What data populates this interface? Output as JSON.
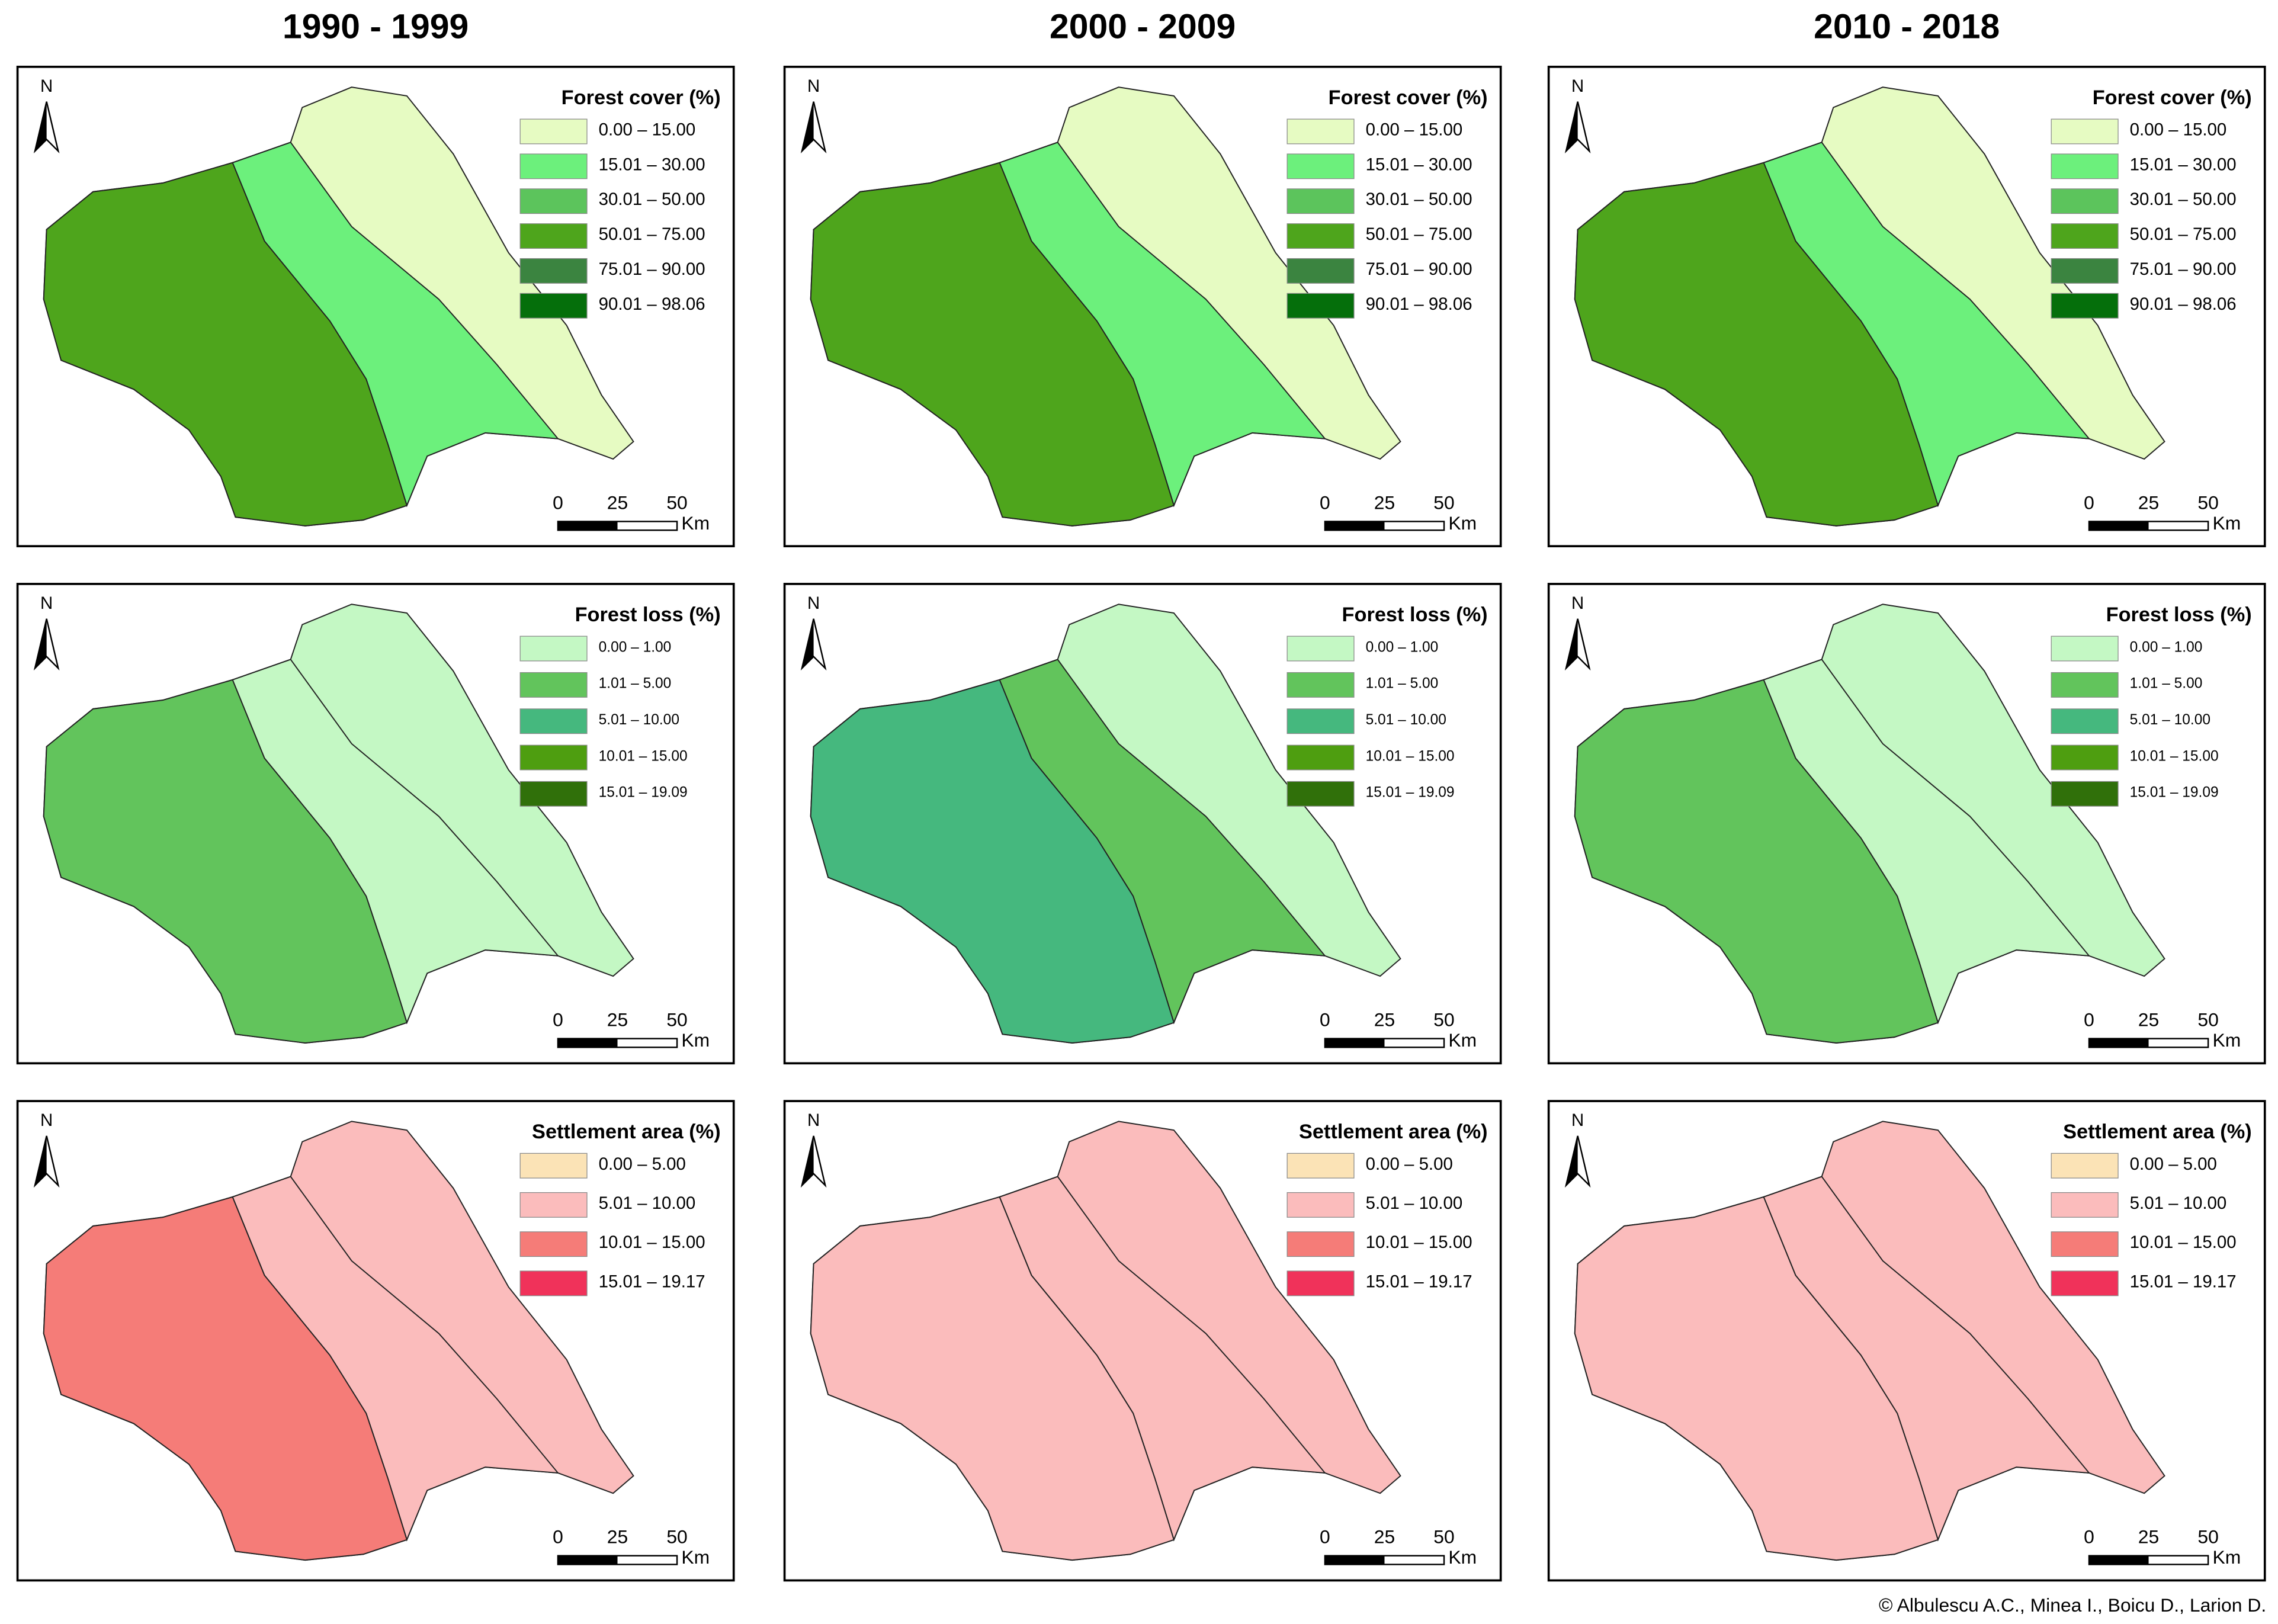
{
  "columns": [
    "1990 - 1999",
    "2000 - 2009",
    "2010 - 2018"
  ],
  "legends": [
    {
      "title": "Forest cover (%)",
      "classes": [
        {
          "label": "0.00 – 15.00",
          "color": "#e6fbc2"
        },
        {
          "label": "15.01 – 30.00",
          "color": "#6cf07c"
        },
        {
          "label": "30.01 – 50.00",
          "color": "#5cc45c"
        },
        {
          "label": "50.01 – 75.00",
          "color": "#4ea51c"
        },
        {
          "label": "75.01 – 90.00",
          "color": "#3b8440"
        },
        {
          "label": "90.01 – 98.06",
          "color": "#056f0b"
        }
      ]
    },
    {
      "title": "Forest loss (%)",
      "classes": [
        {
          "label": "0.00 – 1.00",
          "color": "#c4f8c4"
        },
        {
          "label": "1.01 – 5.00",
          "color": "#62c45c"
        },
        {
          "label": "5.01 – 10.00",
          "color": "#45b87e"
        },
        {
          "label": "10.01 – 15.00",
          "color": "#4e9e10"
        },
        {
          "label": "15.01 – 19.09",
          "color": "#30700a"
        }
      ]
    },
    {
      "title": "Settlement area (%)",
      "classes": [
        {
          "label": "0.00 – 5.00",
          "color": "#fbe3b6"
        },
        {
          "label": "5.01 – 10.00",
          "color": "#fbbcbc"
        },
        {
          "label": "10.01 – 15.00",
          "color": "#f57c78"
        },
        {
          "label": "15.01 – 19.17",
          "color": "#f0325a"
        }
      ]
    }
  ],
  "north_label": "N",
  "scale": {
    "ticks": [
      0,
      25,
      50
    ],
    "unit": "Km"
  },
  "credit": "© Albulescu A.C., Minea I., Boicu D., Larion D."
}
